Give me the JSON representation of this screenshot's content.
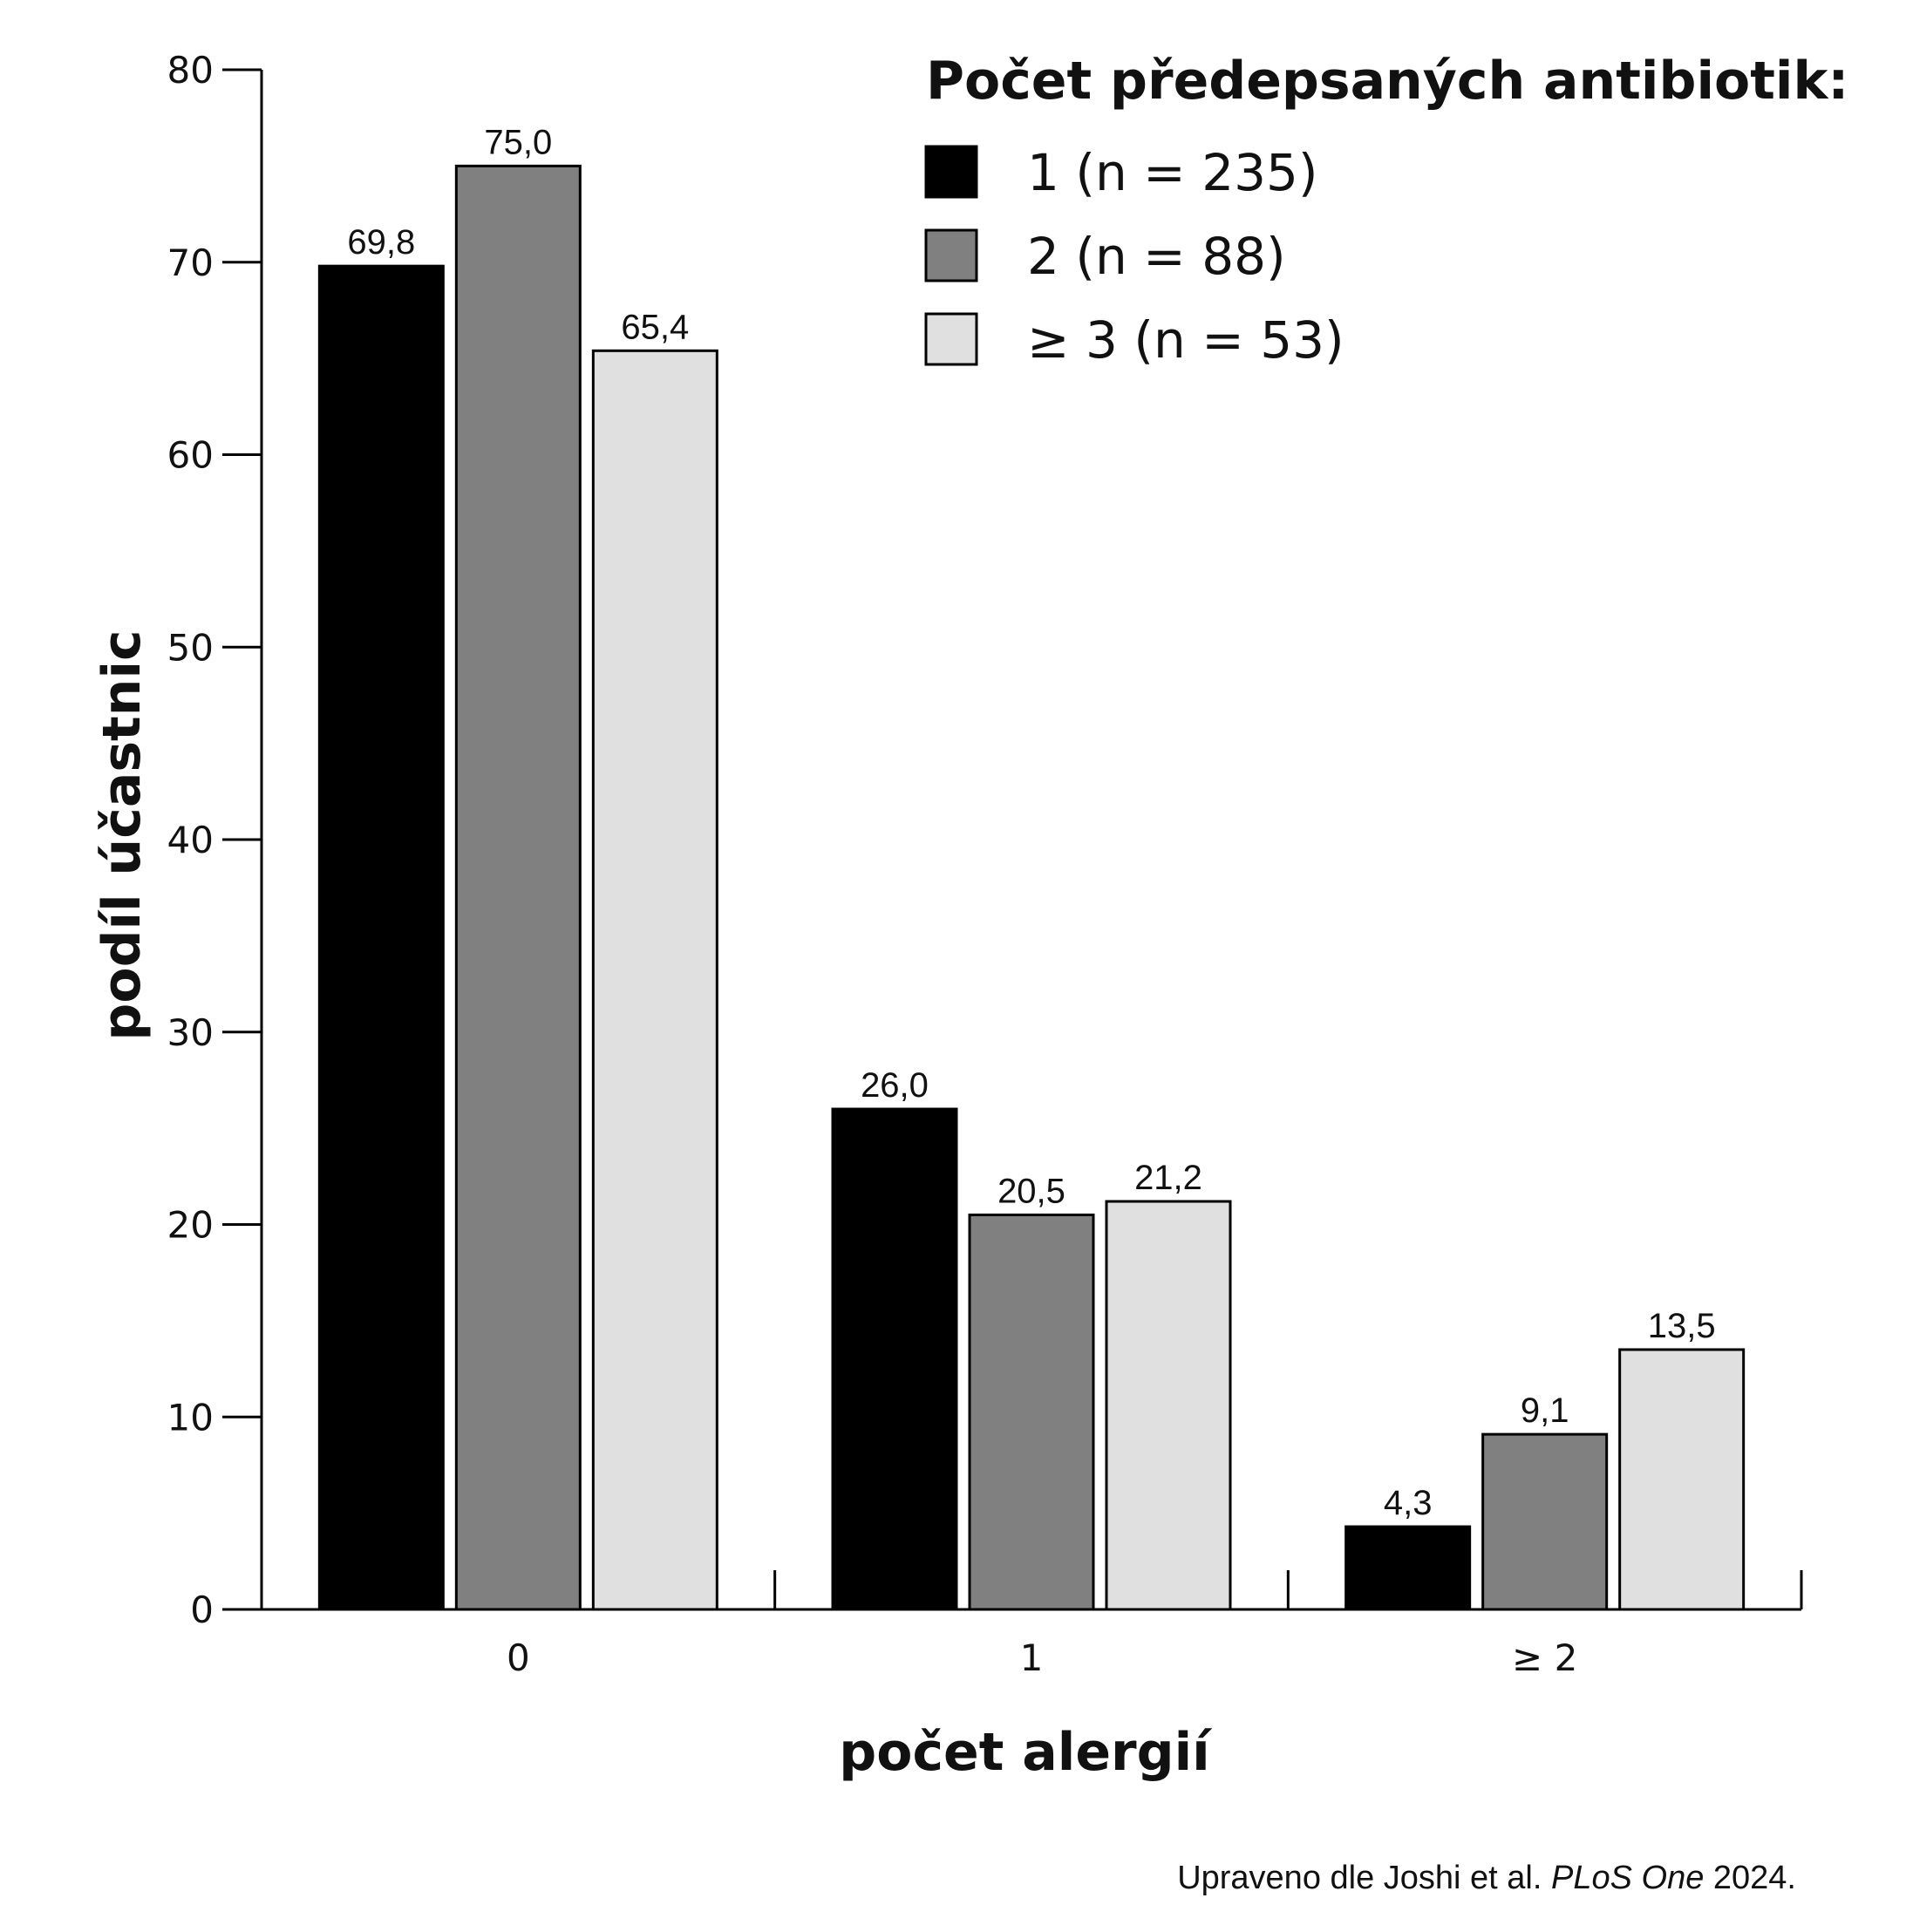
{
  "chart_data": {
    "type": "bar",
    "categories": [
      "0",
      "1",
      "≥ 2"
    ],
    "series": [
      {
        "name": "1 (n = 235)",
        "values": [
          69.8,
          26.0,
          4.3
        ],
        "labels": [
          "69,8",
          "26,0",
          "4,3"
        ],
        "color": "#000000"
      },
      {
        "name": "2  (n = 88)",
        "values": [
          75.0,
          20.5,
          9.1
        ],
        "labels": [
          "75,0",
          "20,5",
          "9,1"
        ],
        "color": "#808080"
      },
      {
        "name": "≥ 3 (n = 53)",
        "values": [
          65.4,
          21.2,
          13.5
        ],
        "labels": [
          "65,4",
          "21,2",
          "13,5"
        ],
        "color": "#e0e0e0"
      }
    ],
    "xlabel": "počet alergií",
    "ylabel": "podíl účastnic",
    "ylim": [
      0,
      80
    ],
    "yticks": [
      "0",
      "10",
      "20",
      "30",
      "40",
      "50",
      "60",
      "70",
      "80"
    ],
    "legend": {
      "title": "Počet předepsaných antibiotik:",
      "placement": "top-right"
    },
    "grid": false
  },
  "source": {
    "prefix": "Upraveno dle Joshi et al. ",
    "journal": "PLoS One",
    "suffix": " 2024."
  }
}
